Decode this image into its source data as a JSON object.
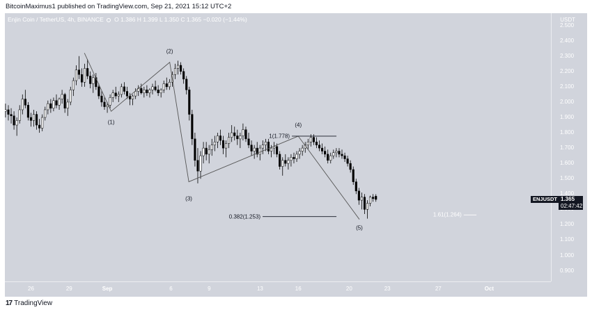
{
  "caption": "BitcoinMaximus1 published on TradingView.com, Sep 21, 2021 15:12 UTC+2",
  "header": {
    "symbol": "Enjin Coin / TetherUS, 4h, BINANCE",
    "open": "O 1.386",
    "high": "H 1.399",
    "low": "L 1.350",
    "close": "C 1.365",
    "change": "−0.020 (−1.44%)"
  },
  "footer": {
    "logo_text": "TradingView"
  },
  "badge": {
    "symbol": "ENJUSDT",
    "price": "1.365",
    "countdown": "02:47:42"
  },
  "colors": {
    "background": "#d1d4dc",
    "candle_up": "#ffffff",
    "candle_down": "#000000",
    "wick": "#000000",
    "wave_line": "#555555",
    "text_light": "#ffffff",
    "text_dark": "#131722"
  },
  "chart_data": {
    "type": "candlestick",
    "currency": "USDT",
    "price_ticks": [
      "2.500",
      "2.400",
      "2.300",
      "2.200",
      "2.100",
      "2.000",
      "1.900",
      "1.800",
      "1.700",
      "1.600",
      "1.500",
      "1.400",
      "1.300",
      "1.200",
      "1.100",
      "1.000",
      "0.900"
    ],
    "date_ticks": [
      {
        "label": "26",
        "day": 26,
        "bold": false
      },
      {
        "label": "29",
        "day": 29,
        "bold": false
      },
      {
        "label": "Sep",
        "day": 32,
        "bold": true
      },
      {
        "label": "6",
        "day": 37,
        "bold": false
      },
      {
        "label": "9",
        "day": 40,
        "bold": false
      },
      {
        "label": "13",
        "day": 44,
        "bold": false
      },
      {
        "label": "16",
        "day": 47,
        "bold": false
      },
      {
        "label": "20",
        "day": 51,
        "bold": false
      },
      {
        "label": "23",
        "day": 54,
        "bold": false
      },
      {
        "label": "27",
        "day": 58,
        "bold": false
      },
      {
        "label": "Oct",
        "day": 62,
        "bold": true
      }
    ],
    "ylim": [
      0.83,
      2.58
    ],
    "xlim": [
      23.95,
      66.85
    ],
    "last_price": 1.365,
    "waves": [
      {
        "label": "(1)",
        "day": 32.3,
        "price": 1.94,
        "label_price": 1.87
      },
      {
        "label": "(2)",
        "day": 36.9,
        "price": 2.26,
        "label_price": 2.33
      },
      {
        "label": "(3)",
        "day": 38.4,
        "price": 1.48,
        "label_price": 1.37
      },
      {
        "label": "(4)",
        "day": 47.0,
        "price": 1.778,
        "label_price": 1.85
      },
      {
        "label": "(5)",
        "day": 51.8,
        "price": 1.235,
        "label_price": 1.18
      }
    ],
    "wave_extra_start": {
      "day": 30.2,
      "price": 2.32
    },
    "fib_levels": [
      {
        "label": "1(1.778)",
        "price": 1.778,
        "x_start_day": 46.5,
        "x_end_day": 50.0
      },
      {
        "label": "0.382(1.253)",
        "price": 1.253,
        "x_start_day": 44.2,
        "x_end_day": 50.0
      },
      {
        "label": "1.61(1.264)",
        "price": 1.264,
        "x_start_day": 60.0,
        "x_end_day": 61.0
      }
    ],
    "candles": [
      [
        1.94,
        1.99,
        1.9,
        1.95
      ],
      [
        1.95,
        1.98,
        1.88,
        1.92
      ],
      [
        1.92,
        1.96,
        1.86,
        1.91
      ],
      [
        1.91,
        1.94,
        1.82,
        1.85
      ],
      [
        1.85,
        1.9,
        1.78,
        1.88
      ],
      [
        1.88,
        1.98,
        1.86,
        1.95
      ],
      [
        1.95,
        2.05,
        1.92,
        2.02
      ],
      [
        2.02,
        2.08,
        1.96,
        1.98
      ],
      [
        1.98,
        2.0,
        1.88,
        1.9
      ],
      [
        1.9,
        1.93,
        1.84,
        1.88
      ],
      [
        1.88,
        1.95,
        1.84,
        1.92
      ],
      [
        1.92,
        1.94,
        1.82,
        1.85
      ],
      [
        1.85,
        1.89,
        1.8,
        1.83
      ],
      [
        1.83,
        1.92,
        1.81,
        1.9
      ],
      [
        1.9,
        1.97,
        1.88,
        1.95
      ],
      [
        1.95,
        2.01,
        1.92,
        1.99
      ],
      [
        1.99,
        2.02,
        1.93,
        1.96
      ],
      [
        1.96,
        2.03,
        1.94,
        2.01
      ],
      [
        2.01,
        2.05,
        1.96,
        1.98
      ],
      [
        1.98,
        2.03,
        1.95,
        2.02
      ],
      [
        2.02,
        2.08,
        1.99,
        2.05
      ],
      [
        2.05,
        2.06,
        1.93,
        1.96
      ],
      [
        1.96,
        2.02,
        1.91,
        2.0
      ],
      [
        2.0,
        2.1,
        1.98,
        2.08
      ],
      [
        2.08,
        2.16,
        2.04,
        2.14
      ],
      [
        2.14,
        2.24,
        2.11,
        2.21
      ],
      [
        2.21,
        2.3,
        2.15,
        2.18
      ],
      [
        2.18,
        2.22,
        2.1,
        2.13
      ],
      [
        2.13,
        2.25,
        2.1,
        2.22
      ],
      [
        2.22,
        2.28,
        2.15,
        2.17
      ],
      [
        2.17,
        2.2,
        2.09,
        2.12
      ],
      [
        2.12,
        2.18,
        2.06,
        2.16
      ],
      [
        2.16,
        2.19,
        2.08,
        2.1
      ],
      [
        2.1,
        2.12,
        2.02,
        2.04
      ],
      [
        2.04,
        2.07,
        1.97,
        2.0
      ],
      [
        2.0,
        2.03,
        1.95,
        1.97
      ],
      [
        1.97,
        2.0,
        1.93,
        1.98
      ],
      [
        1.98,
        2.05,
        1.96,
        2.03
      ],
      [
        2.03,
        2.08,
        2.0,
        2.06
      ],
      [
        2.06,
        2.1,
        2.02,
        2.04
      ],
      [
        2.04,
        2.07,
        2.0,
        2.05
      ],
      [
        2.05,
        2.12,
        2.03,
        2.1
      ],
      [
        2.1,
        2.13,
        2.05,
        2.07
      ],
      [
        2.07,
        2.1,
        2.02,
        2.04
      ],
      [
        2.04,
        2.06,
        1.98,
        2.02
      ],
      [
        2.02,
        2.05,
        1.98,
        2.04
      ],
      [
        2.04,
        2.09,
        2.02,
        2.07
      ],
      [
        2.07,
        2.11,
        2.04,
        2.09
      ],
      [
        2.09,
        2.12,
        2.05,
        2.06
      ],
      [
        2.06,
        2.1,
        2.03,
        2.08
      ],
      [
        2.08,
        2.11,
        2.04,
        2.06
      ],
      [
        2.06,
        2.09,
        2.03,
        2.08
      ],
      [
        2.08,
        2.12,
        2.05,
        2.1
      ],
      [
        2.1,
        2.14,
        2.07,
        2.08
      ],
      [
        2.08,
        2.11,
        2.04,
        2.06
      ],
      [
        2.06,
        2.09,
        2.03,
        2.08
      ],
      [
        2.08,
        2.14,
        2.06,
        2.12
      ],
      [
        2.12,
        2.16,
        2.08,
        2.1
      ],
      [
        2.1,
        2.15,
        2.08,
        2.13
      ],
      [
        2.13,
        2.2,
        2.1,
        2.18
      ],
      [
        2.18,
        2.25,
        2.15,
        2.22
      ],
      [
        2.22,
        2.27,
        2.18,
        2.24
      ],
      [
        2.24,
        2.26,
        2.18,
        2.2
      ],
      [
        2.2,
        2.22,
        2.12,
        2.15
      ],
      [
        2.15,
        2.17,
        2.05,
        2.08
      ],
      [
        2.08,
        2.1,
        1.88,
        1.92
      ],
      [
        1.92,
        1.95,
        1.72,
        1.76
      ],
      [
        1.76,
        1.8,
        1.58,
        1.62
      ],
      [
        1.62,
        1.7,
        1.47,
        1.55
      ],
      [
        1.55,
        1.68,
        1.5,
        1.65
      ],
      [
        1.65,
        1.74,
        1.6,
        1.7
      ],
      [
        1.7,
        1.74,
        1.62,
        1.66
      ],
      [
        1.66,
        1.72,
        1.6,
        1.69
      ],
      [
        1.69,
        1.76,
        1.65,
        1.72
      ],
      [
        1.72,
        1.78,
        1.68,
        1.74
      ],
      [
        1.74,
        1.8,
        1.7,
        1.78
      ],
      [
        1.78,
        1.82,
        1.72,
        1.75
      ],
      [
        1.75,
        1.78,
        1.66,
        1.7
      ],
      [
        1.7,
        1.75,
        1.64,
        1.73
      ],
      [
        1.73,
        1.8,
        1.7,
        1.77
      ],
      [
        1.77,
        1.85,
        1.74,
        1.8
      ],
      [
        1.8,
        1.84,
        1.75,
        1.78
      ],
      [
        1.78,
        1.82,
        1.72,
        1.76
      ],
      [
        1.76,
        1.8,
        1.7,
        1.78
      ],
      [
        1.78,
        1.86,
        1.75,
        1.82
      ],
      [
        1.82,
        1.84,
        1.74,
        1.76
      ],
      [
        1.76,
        1.8,
        1.7,
        1.72
      ],
      [
        1.72,
        1.75,
        1.65,
        1.68
      ],
      [
        1.68,
        1.72,
        1.63,
        1.7
      ],
      [
        1.7,
        1.74,
        1.64,
        1.66
      ],
      [
        1.66,
        1.72,
        1.62,
        1.7
      ],
      [
        1.7,
        1.75,
        1.66,
        1.72
      ],
      [
        1.72,
        1.76,
        1.68,
        1.74
      ],
      [
        1.74,
        1.76,
        1.66,
        1.68
      ],
      [
        1.68,
        1.72,
        1.64,
        1.7
      ],
      [
        1.7,
        1.74,
        1.66,
        1.71
      ],
      [
        1.71,
        1.73,
        1.64,
        1.66
      ],
      [
        1.66,
        1.68,
        1.56,
        1.58
      ],
      [
        1.58,
        1.64,
        1.52,
        1.62
      ],
      [
        1.62,
        1.66,
        1.58,
        1.6
      ],
      [
        1.6,
        1.64,
        1.56,
        1.62
      ],
      [
        1.62,
        1.66,
        1.58,
        1.64
      ],
      [
        1.64,
        1.67,
        1.6,
        1.63
      ],
      [
        1.63,
        1.68,
        1.61,
        1.66
      ],
      [
        1.66,
        1.7,
        1.63,
        1.68
      ],
      [
        1.68,
        1.72,
        1.65,
        1.7
      ],
      [
        1.7,
        1.74,
        1.67,
        1.72
      ],
      [
        1.72,
        1.76,
        1.69,
        1.74
      ],
      [
        1.74,
        1.79,
        1.71,
        1.77
      ],
      [
        1.77,
        1.79,
        1.72,
        1.74
      ],
      [
        1.74,
        1.77,
        1.7,
        1.72
      ],
      [
        1.72,
        1.75,
        1.68,
        1.7
      ],
      [
        1.7,
        1.73,
        1.66,
        1.68
      ],
      [
        1.68,
        1.71,
        1.64,
        1.66
      ],
      [
        1.66,
        1.69,
        1.6,
        1.62
      ],
      [
        1.62,
        1.67,
        1.6,
        1.65
      ],
      [
        1.65,
        1.69,
        1.63,
        1.67
      ],
      [
        1.67,
        1.7,
        1.64,
        1.68
      ],
      [
        1.68,
        1.7,
        1.64,
        1.66
      ],
      [
        1.66,
        1.69,
        1.63,
        1.65
      ],
      [
        1.65,
        1.67,
        1.61,
        1.63
      ],
      [
        1.63,
        1.65,
        1.58,
        1.6
      ],
      [
        1.6,
        1.62,
        1.54,
        1.56
      ],
      [
        1.56,
        1.58,
        1.46,
        1.48
      ],
      [
        1.48,
        1.5,
        1.4,
        1.42
      ],
      [
        1.42,
        1.44,
        1.33,
        1.36
      ],
      [
        1.36,
        1.41,
        1.3,
        1.38
      ],
      [
        1.38,
        1.4,
        1.27,
        1.3
      ],
      [
        1.3,
        1.36,
        1.24,
        1.34
      ],
      [
        1.34,
        1.39,
        1.32,
        1.38
      ],
      [
        1.38,
        1.4,
        1.35,
        1.37
      ],
      [
        1.386,
        1.399,
        1.35,
        1.365
      ]
    ]
  }
}
